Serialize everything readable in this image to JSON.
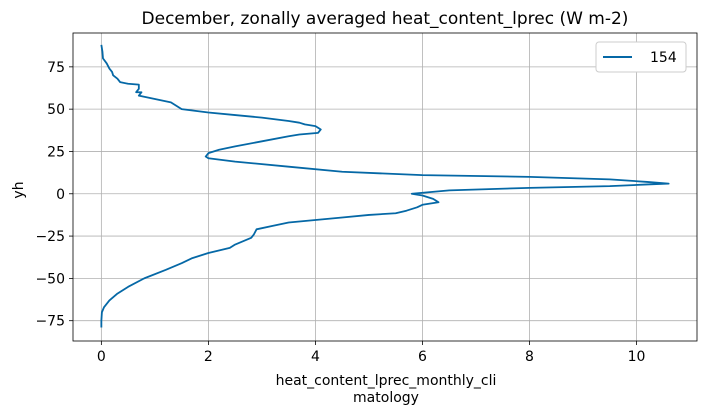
{
  "chart_data": {
    "type": "line",
    "title": "December, zonally averaged heat_content_lprec (W m-2)",
    "xlabel_line1": "heat_content_lprec_monthly_cli",
    "xlabel_line2": "matology",
    "ylabel": "yh",
    "xlim": [
      -0.53,
      11.13
    ],
    "ylim": [
      -87,
      95
    ],
    "xticks": [
      0,
      2,
      4,
      6,
      8,
      10
    ],
    "xtick_labels": [
      "0",
      "2",
      "4",
      "6",
      "8",
      "10"
    ],
    "yticks": [
      -75,
      -50,
      -25,
      0,
      25,
      50,
      75
    ],
    "ytick_labels": [
      "−75",
      "−50",
      "−25",
      "0",
      "25",
      "50",
      "75"
    ],
    "grid": true,
    "legend_position": "top-right",
    "colors": {
      "line": "#0568a6",
      "grid": "#b0b0b0",
      "axis": "#000000"
    },
    "series": [
      {
        "name": "154",
        "points": [
          [
            0.0,
            88
          ],
          [
            0.02,
            84
          ],
          [
            0.03,
            80
          ],
          [
            0.1,
            77
          ],
          [
            0.15,
            74
          ],
          [
            0.2,
            72
          ],
          [
            0.22,
            70
          ],
          [
            0.3,
            68
          ],
          [
            0.35,
            66
          ],
          [
            0.5,
            65
          ],
          [
            0.7,
            64.5
          ],
          [
            0.7,
            62
          ],
          [
            0.65,
            60
          ],
          [
            0.75,
            60
          ],
          [
            0.7,
            58
          ],
          [
            1.0,
            56
          ],
          [
            1.3,
            54
          ],
          [
            1.4,
            52
          ],
          [
            1.5,
            50
          ],
          [
            2.0,
            48
          ],
          [
            2.5,
            46.5
          ],
          [
            3.0,
            45
          ],
          [
            3.5,
            43
          ],
          [
            3.7,
            42
          ],
          [
            3.8,
            41
          ],
          [
            4.0,
            40
          ],
          [
            4.1,
            38
          ],
          [
            4.05,
            36
          ],
          [
            3.7,
            35
          ],
          [
            3.5,
            34
          ],
          [
            3.0,
            31
          ],
          [
            2.5,
            28
          ],
          [
            2.2,
            26
          ],
          [
            2.0,
            24
          ],
          [
            1.95,
            22
          ],
          [
            2.0,
            21
          ],
          [
            2.5,
            19
          ],
          [
            3.5,
            16
          ],
          [
            4.5,
            13
          ],
          [
            6.0,
            11
          ],
          [
            8.0,
            10
          ],
          [
            9.5,
            8.5
          ],
          [
            10.2,
            7
          ],
          [
            10.6,
            6
          ],
          [
            10.2,
            5.5
          ],
          [
            9.5,
            4.5
          ],
          [
            8.0,
            3.5
          ],
          [
            6.5,
            2
          ],
          [
            5.8,
            0
          ],
          [
            6.0,
            -1
          ],
          [
            6.2,
            -3
          ],
          [
            6.3,
            -5
          ],
          [
            6.0,
            -6.5
          ],
          [
            5.9,
            -8
          ],
          [
            5.7,
            -10
          ],
          [
            5.5,
            -11.5
          ],
          [
            5.0,
            -12.5
          ],
          [
            4.5,
            -14
          ],
          [
            4.0,
            -15.5
          ],
          [
            3.5,
            -17
          ],
          [
            3.2,
            -19
          ],
          [
            2.9,
            -21
          ],
          [
            2.85,
            -24
          ],
          [
            2.8,
            -26
          ],
          [
            2.5,
            -30
          ],
          [
            2.4,
            -32
          ],
          [
            2.0,
            -35
          ],
          [
            1.7,
            -38
          ],
          [
            1.5,
            -41
          ],
          [
            1.2,
            -45
          ],
          [
            0.8,
            -50
          ],
          [
            0.5,
            -55
          ],
          [
            0.3,
            -59
          ],
          [
            0.15,
            -63
          ],
          [
            0.05,
            -67
          ],
          [
            0.01,
            -70
          ],
          [
            0.0,
            -75
          ],
          [
            0.0,
            -79
          ]
        ]
      }
    ]
  }
}
